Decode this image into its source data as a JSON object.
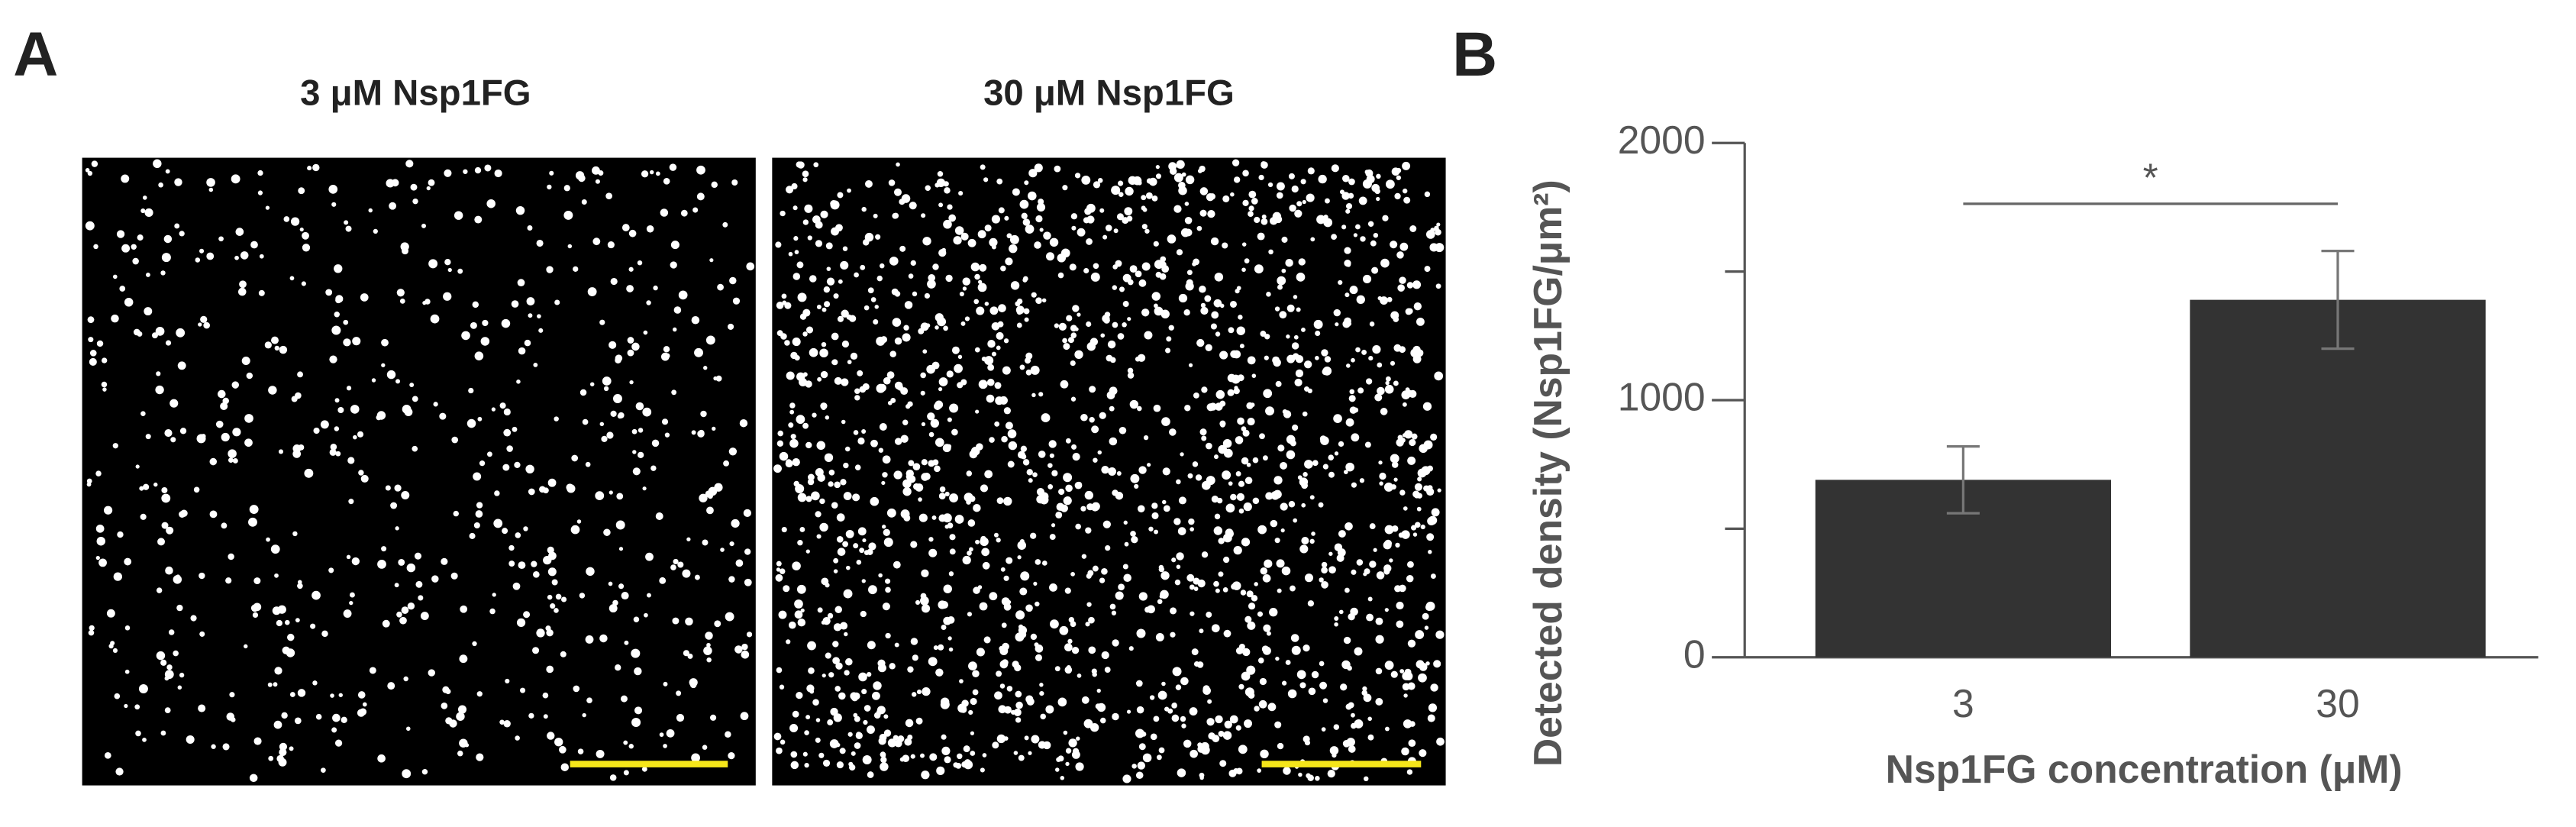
{
  "panel_labels": [
    "A",
    "B"
  ],
  "images": [
    {
      "title": "3 μM Nsp1FG"
    },
    {
      "title": "30 μM Nsp1FG"
    }
  ],
  "chart_data": {
    "type": "bar",
    "xlabel": "Nsp1FG concentration (μM)",
    "ylabel": "Detected density (Nsp1FG/μm²)",
    "categories": [
      "3",
      "30"
    ],
    "values": [
      690,
      1390
    ],
    "errors": [
      130,
      190
    ],
    "color": "#333333",
    "ylim": [
      0,
      2000
    ],
    "yticks": [
      0,
      1000,
      2000
    ],
    "yminorticks": [
      500,
      1500
    ],
    "significance": "*"
  }
}
